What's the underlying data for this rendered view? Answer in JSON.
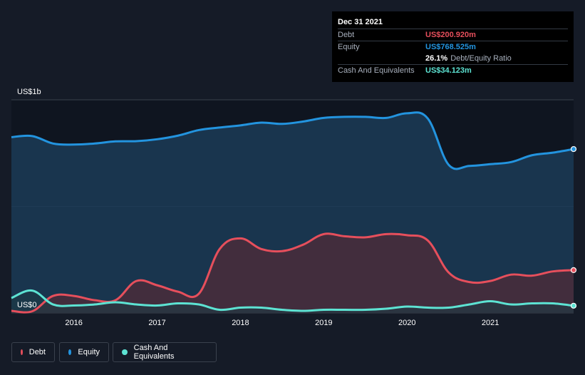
{
  "tooltip": {
    "date": "Dec 31 2021",
    "debt_label": "Debt",
    "debt_value": "US$200.920m",
    "equity_label": "Equity",
    "equity_value": "US$768.525m",
    "ratio_value": "26.1%",
    "ratio_label": "Debt/Equity Ratio",
    "cash_label": "Cash And Equivalents",
    "cash_value": "US$34.123m"
  },
  "legend": {
    "debt": "Debt",
    "equity": "Equity",
    "cash": "Cash And Equivalents"
  },
  "colors": {
    "background": "#151b27",
    "debt": "#e64f5c",
    "equity": "#2394df",
    "cash": "#5de3d3",
    "grid": "#3a414d"
  },
  "chart_data": {
    "type": "area",
    "y_unit": "US$ millions",
    "ylim": [
      0,
      1000
    ],
    "y_ticks": [
      {
        "value": 1000,
        "label": "US$1b"
      },
      {
        "value": 0,
        "label": "US$0"
      }
    ],
    "xlim": [
      2015.25,
      2022.0
    ],
    "x_ticks": [
      2016,
      2017,
      2018,
      2019,
      2020,
      2021
    ],
    "x_tick_labels": [
      "2016",
      "2017",
      "2018",
      "2019",
      "2020",
      "2021"
    ],
    "grid": true,
    "legend_position": "bottom-left",
    "x": [
      2015.25,
      2015.5,
      2015.75,
      2016.0,
      2016.25,
      2016.5,
      2016.75,
      2017.0,
      2017.25,
      2017.5,
      2017.75,
      2018.0,
      2018.25,
      2018.5,
      2018.75,
      2019.0,
      2019.25,
      2019.5,
      2019.75,
      2020.0,
      2020.25,
      2020.5,
      2020.75,
      2021.0,
      2021.25,
      2021.5,
      2021.75,
      2022.0
    ],
    "series": [
      {
        "name": "Equity",
        "values": [
          825,
          830,
          795,
          790,
          795,
          805,
          806,
          815,
          832,
          858,
          870,
          880,
          893,
          887,
          898,
          915,
          920,
          920,
          915,
          937,
          912,
          695,
          690,
          698,
          708,
          740,
          752,
          769
        ]
      },
      {
        "name": "Debt",
        "values": [
          10,
          8,
          80,
          80,
          60,
          60,
          150,
          130,
          100,
          90,
          300,
          350,
          300,
          290,
          320,
          370,
          360,
          355,
          370,
          365,
          340,
          190,
          145,
          150,
          180,
          175,
          195,
          201
        ]
      },
      {
        "name": "Cash And Equivalents",
        "values": [
          70,
          105,
          40,
          35,
          40,
          50,
          40,
          35,
          45,
          40,
          15,
          25,
          25,
          15,
          10,
          15,
          15,
          15,
          20,
          30,
          25,
          25,
          40,
          55,
          40,
          45,
          45,
          34
        ]
      }
    ]
  }
}
